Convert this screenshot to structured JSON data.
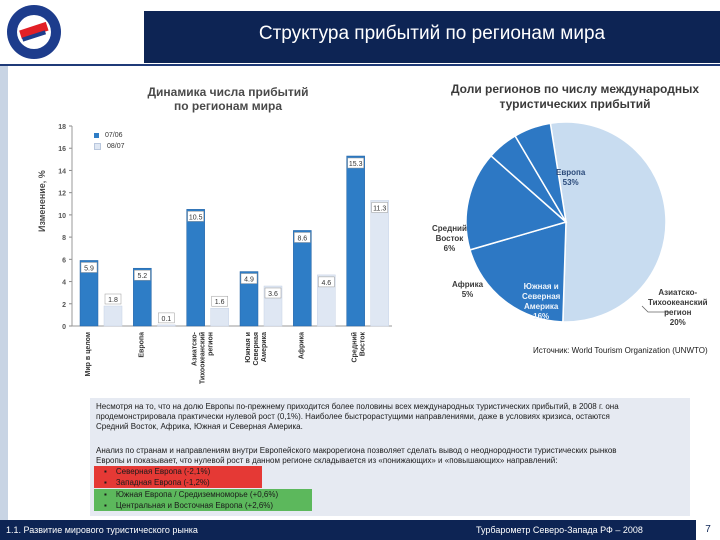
{
  "header": {
    "title": "Структура прибытий по регионам мира"
  },
  "colors": {
    "navy": "#0d2454",
    "bar_2006": "#2e7dc6",
    "bar_2007": "#dfe7f3",
    "pie_blue": "#2d78c4",
    "pie_light": "#c8dcf0",
    "highlight_red": "#e53935",
    "highlight_green": "#5cb85c"
  },
  "chart_data": [
    {
      "type": "bar",
      "title": "Динамика числа прибытий по регионам мира",
      "title_lines": [
        "Динамика числа прибытий",
        "по регионам мира"
      ],
      "ylabel": "Изменение, %",
      "ylim": [
        0,
        18
      ],
      "yticks": [
        0,
        2,
        4,
        6,
        8,
        10,
        12,
        14,
        16,
        18
      ],
      "categories": [
        "Мир в целом",
        "Европа",
        "Азиатско-Тихоокеанский регион",
        "Южная и Северная Америка",
        "Африка",
        "Средний Восток"
      ],
      "category_lines": [
        [
          "Мир в целом"
        ],
        [
          "Европа"
        ],
        [
          "Азиатско-",
          "Тихоокеанский",
          "регион"
        ],
        [
          "Южная и",
          "Северная",
          "Америка"
        ],
        [
          "Африка"
        ],
        [
          "Средний",
          "Восток"
        ]
      ],
      "series": [
        {
          "name": "07/06",
          "values": [
            5.9,
            5.2,
            10.5,
            4.9,
            8.6,
            15.3
          ]
        },
        {
          "name": "08/07",
          "values": [
            1.8,
            0.1,
            1.6,
            3.6,
            4.6,
            11.3
          ]
        }
      ]
    },
    {
      "type": "pie",
      "title": "Доли регионов по числу международных туристических прибытий",
      "title_lines": [
        "Доли регионов по числу международных",
        "туристических прибытий"
      ],
      "slices": [
        {
          "label": "Европа",
          "value": 53,
          "label_lines": [
            "Европа",
            "53%"
          ]
        },
        {
          "label": "Азиатско-Тихоокеанский регион",
          "value": 20,
          "label_lines": [
            "Азиатско-",
            "Тихоокеанский",
            "регион",
            "20%"
          ]
        },
        {
          "label": "Южная и Северная Америка",
          "value": 16,
          "label_lines": [
            "Южная и",
            "Северная",
            "Америка",
            "16%"
          ]
        },
        {
          "label": "Африка",
          "value": 5,
          "label_lines": [
            "Африка",
            "5%"
          ]
        },
        {
          "label": "Средний Восток",
          "value": 6,
          "label_lines": [
            "Средний",
            "Восток",
            "6%"
          ]
        }
      ]
    }
  ],
  "source": "Источник: World Tourism Organization (UNWTO)",
  "text": {
    "para1_lines": [
      "Несмотря на то, что на долю Европы по-прежнему приходится более половины всех международных туристических прибытий, в 2008 г. она",
      "продемонстрировала практически нулевой рост (0,1%). Наиболее быстрорастущими направлениями, даже в условиях кризиса, остаются",
      "Средний Восток, Африка, Южная и Северная Америка."
    ],
    "para2_lines": [
      "Анализ по странам и направлениям внутри Европейского макрорегиона позволяет сделать вывод о неоднородности туристических рынков",
      "Европы и показывает, что нулевой рост в данном регионе складывается из «понижающих» и «повышающих» направлений:"
    ],
    "bullet": "▪",
    "bullets": [
      {
        "text": "Северная Европа (-2,1%)",
        "color": "#e53935"
      },
      {
        "text": "Западная Европа (-1,2%)",
        "color": "#e53935"
      },
      {
        "text": "Южная Европа / Средиземноморье (+0,6%)",
        "color": "#5cb85c"
      },
      {
        "text": "Центральная и Восточная Европа (+2,6%)",
        "color": "#5cb85c"
      }
    ]
  },
  "footer": {
    "left": "1.1. Развитие мирового туристического рынка",
    "right": "Турбарометр Северо-Запада РФ – 2008",
    "page": "7"
  }
}
